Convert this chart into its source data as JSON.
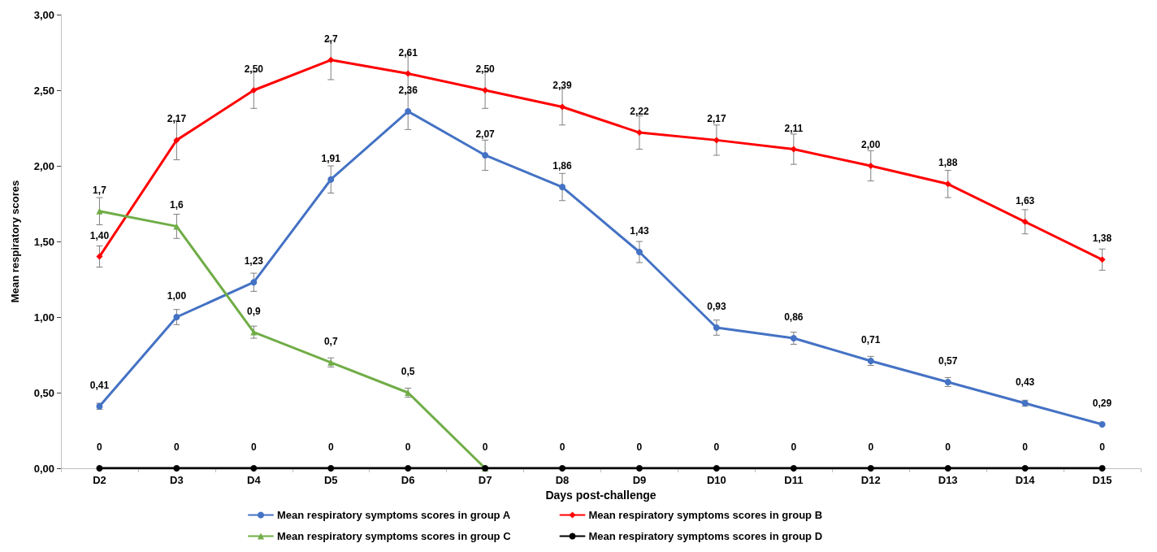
{
  "chart_data": {
    "type": "line",
    "xlabel": "Days post-challenge",
    "ylabel": "Mean respiratory scores",
    "categories": [
      "D2",
      "D3",
      "D4",
      "D5",
      "D6",
      "D7",
      "D8",
      "D9",
      "D10",
      "D11",
      "D12",
      "D13",
      "D14",
      "D15"
    ],
    "ylim": [
      0,
      3
    ],
    "yticks": [
      {
        "value": 0,
        "label": "0,00"
      },
      {
        "value": 0.5,
        "label": "0,50"
      },
      {
        "value": 1,
        "label": "1,00"
      },
      {
        "value": 1.5,
        "label": "1,50"
      },
      {
        "value": 2,
        "label": "2,00"
      },
      {
        "value": 2.5,
        "label": "2,50"
      },
      {
        "value": 3,
        "label": "3,00"
      }
    ],
    "grid": false,
    "legend": "bottom",
    "series": [
      {
        "name": "Mean respiratory symptoms scores in group A",
        "color": "#4472c4",
        "marker": "circle",
        "values": [
          0.41,
          1.0,
          1.23,
          1.91,
          2.36,
          2.07,
          1.86,
          1.43,
          0.93,
          0.86,
          0.71,
          0.57,
          0.43,
          0.29
        ],
        "errors": [
          0.02,
          0.05,
          0.06,
          0.09,
          0.12,
          0.1,
          0.09,
          0.07,
          0.05,
          0.04,
          0.03,
          0.03,
          0.02,
          null
        ],
        "value_labels": [
          "0,41",
          "1,00",
          "1,23",
          "1,91",
          "2,36",
          "2,07",
          "1,86",
          "1,43",
          "0,93",
          "0,86",
          "0,71",
          "0,57",
          "0,43",
          "0,29"
        ]
      },
      {
        "name": "Mean respiratory symptoms scores in group B",
        "color": "#ff0000",
        "marker": "diamond",
        "values": [
          1.4,
          2.17,
          2.5,
          2.7,
          2.61,
          2.5,
          2.39,
          2.22,
          2.17,
          2.11,
          2.0,
          1.88,
          1.63,
          1.38
        ],
        "errors": [
          0.07,
          0.13,
          0.12,
          0.13,
          0.13,
          0.12,
          0.12,
          0.11,
          0.1,
          0.1,
          0.1,
          0.09,
          0.08,
          0.07
        ],
        "value_labels": [
          "1,40",
          "2,17",
          "2,50",
          "2,7",
          "2,61",
          "2,50",
          "2,39",
          "2,22",
          "2,17",
          "2,11",
          "2,00",
          "1,88",
          "1,63",
          "1,38"
        ]
      },
      {
        "name": "Mean respiratory symptoms scores in group C",
        "color": "#70ad47",
        "marker": "triangle",
        "values": [
          1.7,
          1.6,
          0.9,
          0.7,
          0.5,
          0,
          null,
          null,
          null,
          null,
          null,
          null,
          null,
          null
        ],
        "errors": [
          0.09,
          0.08,
          0.04,
          0.03,
          0.03,
          null,
          null,
          null,
          null,
          null,
          null,
          null,
          null,
          null
        ],
        "value_labels": [
          "1,7",
          "1,6",
          "0,9",
          "0,7",
          "0,5",
          null,
          null,
          null,
          null,
          null,
          null,
          null,
          null,
          null
        ]
      },
      {
        "name": "Mean respiratory symptoms scores in group D",
        "color": "#000000",
        "marker": "circle",
        "values": [
          0,
          0,
          0,
          0,
          0,
          0,
          0,
          0,
          0,
          0,
          0,
          0,
          0,
          0
        ],
        "value_labels": [
          "0",
          "0",
          "0",
          "0",
          "0",
          "0",
          "0",
          "0",
          "0",
          "0",
          "0",
          "0",
          "0",
          "0"
        ]
      }
    ]
  }
}
